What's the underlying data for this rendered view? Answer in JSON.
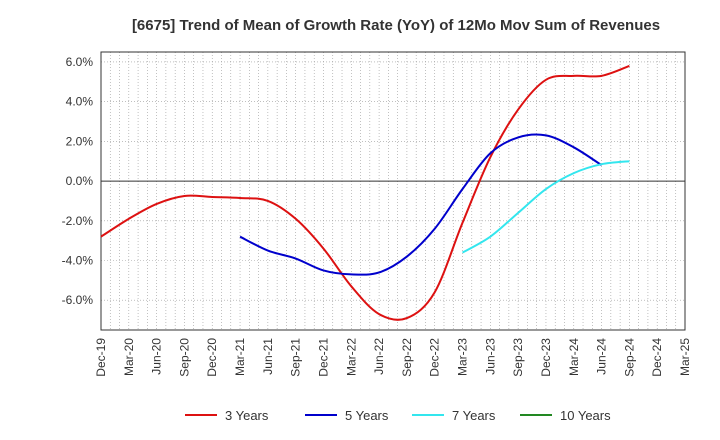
{
  "chart_data": {
    "type": "line",
    "title": "[6675]  Trend of Mean of Growth Rate (YoY) of 12Mo Mov Sum of Revenues",
    "xlabel": "",
    "ylabel": "",
    "ylim": [
      -7.5,
      6.5
    ],
    "yticks": [
      6.0,
      4.0,
      2.0,
      0.0,
      -2.0,
      -4.0,
      -6.0
    ],
    "ytick_labels": [
      "6.0%",
      "4.0%",
      "2.0%",
      "0.0%",
      "-2.0%",
      "-4.0%",
      "-6.0%"
    ],
    "x_categories": [
      "Dec-19",
      "Mar-20",
      "Jun-20",
      "Sep-20",
      "Dec-20",
      "Mar-21",
      "Jun-21",
      "Sep-21",
      "Dec-21",
      "Mar-22",
      "Jun-22",
      "Sep-22",
      "Dec-22",
      "Mar-23",
      "Jun-23",
      "Sep-23",
      "Dec-23",
      "Mar-24",
      "Jun-24",
      "Sep-24",
      "Dec-24",
      "Mar-25"
    ],
    "series": [
      {
        "name": "3 Years",
        "color": "#dd1111",
        "values": [
          -2.8,
          -1.9,
          -1.15,
          -0.75,
          -0.8,
          -0.85,
          -1.0,
          -1.9,
          -3.4,
          -5.3,
          -6.7,
          -6.9,
          -5.6,
          -2.1,
          1.2,
          3.6,
          5.1,
          5.3,
          5.3,
          5.8
        ]
      },
      {
        "name": "5 Years",
        "color": "#0000cc",
        "start_index": 5,
        "values": [
          -2.8,
          -3.5,
          -3.9,
          -4.5,
          -4.7,
          -4.6,
          -3.8,
          -2.4,
          -0.4,
          1.4,
          2.2,
          2.3,
          1.7,
          0.8
        ]
      },
      {
        "name": "7 Years",
        "color": "#33e6ee",
        "start_index": 13,
        "values": [
          -3.6,
          -2.8,
          -1.6,
          -0.4,
          0.4,
          0.85,
          1.0
        ]
      },
      {
        "name": "10 Years",
        "color": "#228822",
        "values": []
      }
    ],
    "legend_position": "bottom",
    "grid": true
  }
}
